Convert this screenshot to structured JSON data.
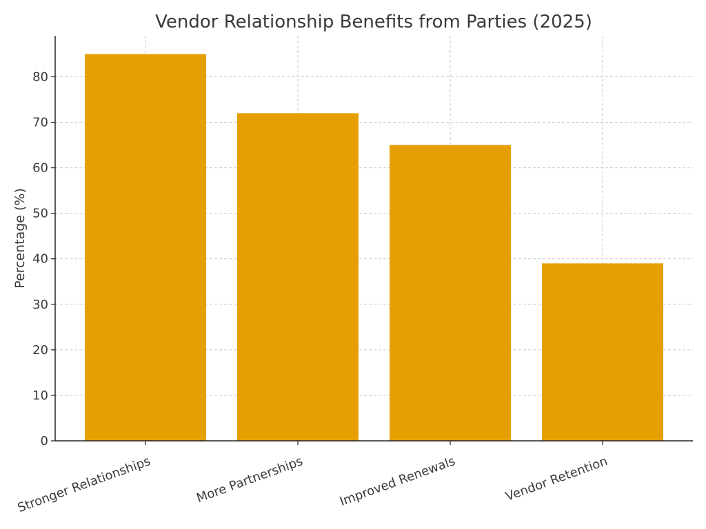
{
  "chart_data": {
    "type": "bar",
    "title": "Vendor Relationship Benefits from Parties (2025)",
    "xlabel": "",
    "ylabel": "Percentage (%)",
    "categories": [
      "Stronger Relationships",
      "More Partnerships",
      "Improved Renewals",
      "Vendor Retention"
    ],
    "values": [
      85,
      72,
      65,
      39
    ],
    "ylim": [
      0,
      89
    ],
    "yticks": [
      0,
      10,
      20,
      30,
      40,
      50,
      60,
      70,
      80
    ],
    "bar_color": "#E69F00",
    "grid": true,
    "legend": "none"
  }
}
